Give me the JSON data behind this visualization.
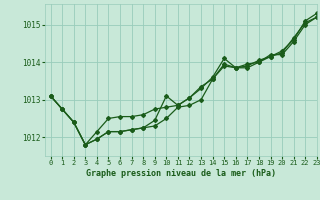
{
  "title": "Graphe pression niveau de la mer (hPa)",
  "background_color": "#c8e8d8",
  "plot_bg_color": "#c8e8d8",
  "grid_color": "#99ccbb",
  "line_color": "#1a5c1a",
  "xlim": [
    -0.5,
    23
  ],
  "ylim": [
    1011.5,
    1015.55
  ],
  "yticks": [
    1012,
    1013,
    1014,
    1015
  ],
  "xticks": [
    0,
    1,
    2,
    3,
    4,
    5,
    6,
    7,
    8,
    9,
    10,
    11,
    12,
    13,
    14,
    15,
    16,
    17,
    18,
    19,
    20,
    21,
    22,
    23
  ],
  "series1": [
    1013.1,
    1012.75,
    1012.4,
    1011.8,
    1011.95,
    1012.15,
    1012.15,
    1012.2,
    1012.25,
    1012.3,
    1012.5,
    1012.8,
    1012.85,
    1013.0,
    1013.55,
    1013.95,
    1013.85,
    1013.85,
    1014.0,
    1014.15,
    1014.25,
    1014.65,
    1015.05,
    1015.2
  ],
  "series2": [
    1013.1,
    1012.75,
    1012.4,
    1011.8,
    1011.95,
    1012.15,
    1012.15,
    1012.2,
    1012.25,
    1012.45,
    1013.1,
    1012.85,
    1013.05,
    1013.3,
    1013.6,
    1014.1,
    1013.85,
    1013.9,
    1014.05,
    1014.15,
    1014.3,
    1014.6,
    1015.1,
    1015.3
  ],
  "series3": [
    1013.1,
    1012.75,
    1012.4,
    1011.8,
    1012.15,
    1012.5,
    1012.55,
    1012.55,
    1012.6,
    1012.75,
    1012.8,
    1012.85,
    1013.05,
    1013.35,
    1013.55,
    1013.9,
    1013.85,
    1013.95,
    1014.0,
    1014.2,
    1014.2,
    1014.55,
    1015.0,
    1015.2
  ]
}
